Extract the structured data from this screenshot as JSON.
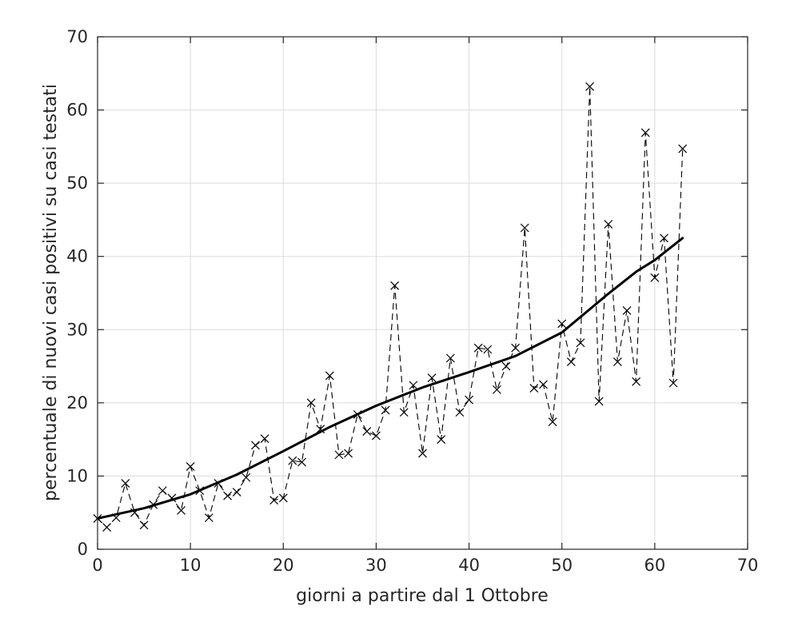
{
  "chart_data": {
    "type": "line",
    "title": "",
    "xlabel": "giorni a partire dal 1 Ottobre",
    "ylabel": "percentuale di nuovi casi positivi su casi testati",
    "xlim": [
      0,
      70
    ],
    "ylim": [
      0,
      70
    ],
    "xticks": [
      0,
      10,
      20,
      30,
      40,
      50,
      60,
      70
    ],
    "yticks": [
      0,
      10,
      20,
      30,
      40,
      50,
      60,
      70
    ],
    "grid": true,
    "legend": "none",
    "series": [
      {
        "style": "dashed-with-x-markers",
        "color": "#000000",
        "x": [
          0,
          1,
          2,
          3,
          4,
          5,
          6,
          7,
          8,
          9,
          10,
          11,
          12,
          13,
          14,
          15,
          16,
          17,
          18,
          19,
          20,
          21,
          22,
          23,
          24,
          25,
          26,
          27,
          28,
          29,
          30,
          31,
          32,
          33,
          34,
          35,
          36,
          37,
          38,
          39,
          40,
          41,
          42,
          43,
          44,
          45,
          46,
          47,
          48,
          49,
          50,
          51,
          52,
          53,
          54,
          55,
          56,
          57,
          58,
          59,
          60,
          61,
          62,
          63
        ],
        "y": [
          4.2,
          3.0,
          4.3,
          9.0,
          5.0,
          3.3,
          6.1,
          8.0,
          7.0,
          5.3,
          11.3,
          8.0,
          4.3,
          9.0,
          7.3,
          7.8,
          9.8,
          14.2,
          15.1,
          6.7,
          7.0,
          12.1,
          11.9,
          20.0,
          16.4,
          23.7,
          12.9,
          13.1,
          18.4,
          16.1,
          15.5,
          19.0,
          36.0,
          18.7,
          22.4,
          13.1,
          23.4,
          15.0,
          26.1,
          18.7,
          20.4,
          27.5,
          27.3,
          21.8,
          25.0,
          27.5,
          43.9,
          22.0,
          22.5,
          17.4,
          30.8,
          25.6,
          28.2,
          63.2,
          20.2,
          44.4,
          25.6,
          32.6,
          22.9,
          56.9,
          37.1,
          42.5,
          22.7,
          54.7
        ]
      },
      {
        "style": "solid-thick",
        "color": "#000000",
        "x": [
          0,
          5,
          10,
          15,
          20,
          25,
          30,
          35,
          40,
          45,
          50,
          55,
          58,
          60,
          63
        ],
        "y": [
          4.2,
          5.6,
          7.5,
          10.2,
          13.4,
          16.7,
          19.6,
          22.1,
          24.2,
          26.4,
          29.6,
          34.9,
          37.9,
          39.5,
          42.5
        ]
      }
    ]
  }
}
